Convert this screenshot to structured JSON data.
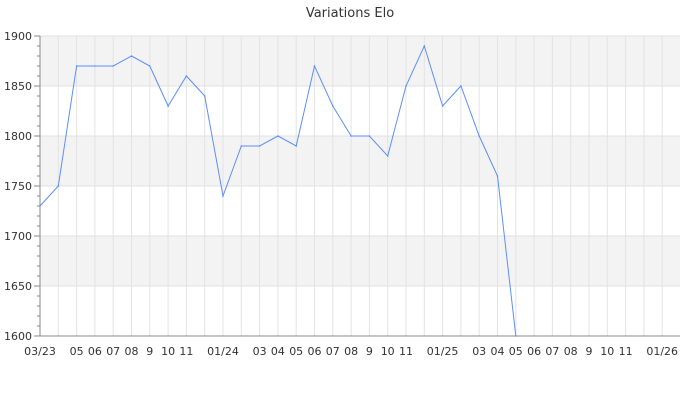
{
  "chart_data": {
    "type": "line",
    "title": "Variations Elo",
    "xlabel": "",
    "ylabel": "",
    "ylim": [
      1600,
      1900
    ],
    "yticks": [
      1600,
      1650,
      1700,
      1750,
      1800,
      1850,
      1900
    ],
    "grid": true,
    "line_color": "#5b8ff9",
    "band_color": "#f3f3f3",
    "x_tick_labels": [
      "03/23",
      "",
      "05",
      "06",
      "07",
      "08",
      "9",
      "10",
      "11",
      "",
      "01/24",
      "",
      "03",
      "04",
      "05",
      "06",
      "07",
      "08",
      "9",
      "10",
      "11",
      "",
      "01/25",
      "",
      "03",
      "04",
      "05",
      "06",
      "07",
      "08",
      "9",
      "10",
      "11",
      "",
      "01/26"
    ],
    "x": [
      "2023-03",
      "2023-04",
      "2023-05",
      "2023-06",
      "2023-07",
      "2023-08",
      "2023-09",
      "2023-10",
      "2023-11",
      "2023-12",
      "2024-01",
      "2024-02",
      "2024-03",
      "2024-04",
      "2024-05",
      "2024-06",
      "2024-07",
      "2024-08",
      "2024-09",
      "2024-10",
      "2024-11",
      "2024-12",
      "2025-01",
      "2025-02",
      "2025-03",
      "2025-04",
      "2025-05"
    ],
    "series": [
      {
        "values": [
          1730,
          1750,
          1870,
          1870,
          1870,
          1880,
          1870,
          1830,
          1860,
          1840,
          1740,
          1790,
          1790,
          1800,
          1790,
          1870,
          1830,
          1800,
          1800,
          1780,
          1850,
          1890,
          1830,
          1850,
          1800,
          1760,
          1600
        ]
      }
    ]
  }
}
